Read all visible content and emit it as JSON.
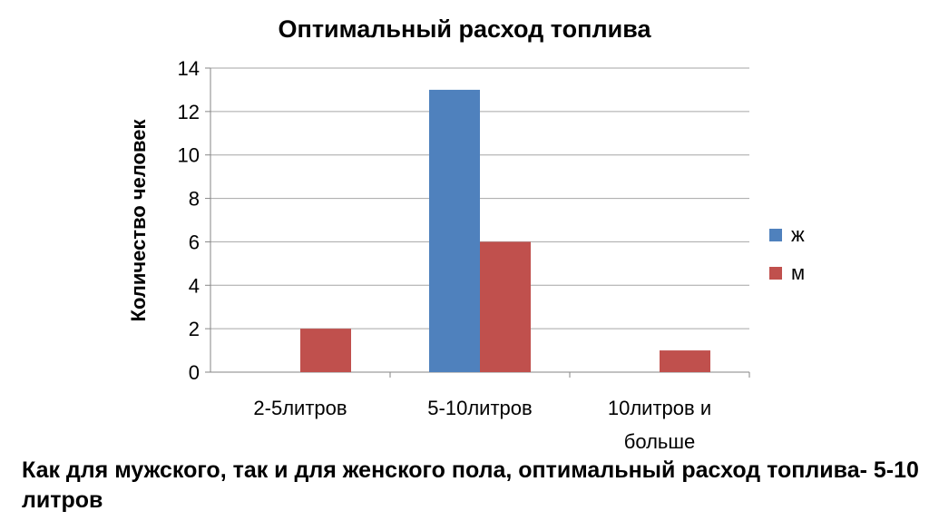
{
  "chart_data": {
    "type": "bar",
    "title": "Оптимальный расход топлива",
    "xlabel": "",
    "ylabel": "Количество человек",
    "categories": [
      [
        "2-5литров"
      ],
      [
        "5-10литров"
      ],
      [
        "10литров и",
        "больше"
      ]
    ],
    "series": [
      {
        "name": "ж",
        "color": "#4F81BD",
        "values": [
          0,
          13,
          0
        ]
      },
      {
        "name": "м",
        "color": "#C0504D",
        "values": [
          2,
          6,
          1
        ]
      }
    ],
    "ylim": [
      0,
      14
    ],
    "yticks": [
      0,
      2,
      4,
      6,
      8,
      10,
      12,
      14
    ],
    "grid": true,
    "legend": "right"
  },
  "conclusion": "Как для мужского, так и для женского пола, оптимальный расход топлива- 5-10 литров"
}
